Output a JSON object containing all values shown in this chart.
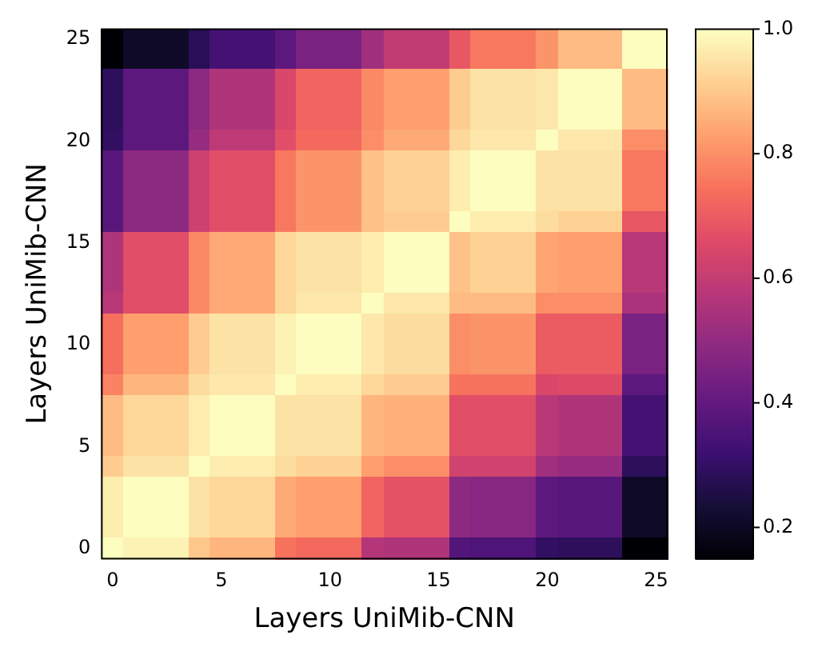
{
  "chart_data": {
    "type": "heatmap",
    "xlabel": "Layers UniMib-CNN",
    "ylabel": "Layers UniMib-CNN",
    "categories": [
      "0",
      null,
      null,
      null,
      null,
      "5",
      null,
      null,
      null,
      null,
      "10",
      null,
      null,
      null,
      null,
      "15",
      null,
      null,
      null,
      null,
      "20",
      null,
      null,
      null,
      null,
      "25"
    ],
    "y_categories": [
      "25",
      null,
      null,
      null,
      null,
      "20",
      null,
      null,
      null,
      null,
      "15",
      null,
      null,
      null,
      null,
      "10",
      null,
      null,
      null,
      null,
      "5",
      null,
      null,
      null,
      null,
      "0"
    ],
    "clim": [
      0.15,
      1.0
    ],
    "cticks": [
      0.2,
      0.4,
      0.6,
      0.8,
      {
        "value": 1,
        "label": "1.0"
      }
    ],
    "cells": [
      [
        0.15,
        0.21,
        0.21,
        0.21,
        0.28,
        0.34,
        0.34,
        0.34,
        0.39,
        0.45,
        0.45,
        0.45,
        0.53,
        0.6,
        0.6,
        0.6,
        0.69,
        0.76,
        0.76,
        0.76,
        0.81,
        0.88,
        0.88,
        0.88,
        1.0,
        1.0
      ],
      [
        0.15,
        0.21,
        0.21,
        0.21,
        0.28,
        0.34,
        0.34,
        0.34,
        0.39,
        0.45,
        0.45,
        0.45,
        0.53,
        0.6,
        0.6,
        0.6,
        0.69,
        0.76,
        0.76,
        0.76,
        0.81,
        0.88,
        0.88,
        0.88,
        1.0,
        1.0
      ],
      [
        0.29,
        0.39,
        0.39,
        0.39,
        0.49,
        0.56,
        0.56,
        0.56,
        0.65,
        0.72,
        0.72,
        0.72,
        0.79,
        0.83,
        0.83,
        0.83,
        0.91,
        0.95,
        0.95,
        0.95,
        0.96,
        1.0,
        1.0,
        1.0,
        0.88,
        0.88
      ],
      [
        0.29,
        0.39,
        0.39,
        0.39,
        0.49,
        0.56,
        0.56,
        0.56,
        0.65,
        0.72,
        0.72,
        0.72,
        0.79,
        0.83,
        0.83,
        0.83,
        0.91,
        0.95,
        0.95,
        0.95,
        0.96,
        1.0,
        1.0,
        1.0,
        0.88,
        0.88
      ],
      [
        0.29,
        0.39,
        0.39,
        0.39,
        0.49,
        0.56,
        0.56,
        0.56,
        0.65,
        0.72,
        0.72,
        0.72,
        0.79,
        0.83,
        0.83,
        0.83,
        0.91,
        0.95,
        0.95,
        0.95,
        0.96,
        1.0,
        1.0,
        1.0,
        0.88,
        0.88
      ],
      [
        0.3,
        0.39,
        0.39,
        0.39,
        0.51,
        0.59,
        0.59,
        0.59,
        0.67,
        0.73,
        0.73,
        0.73,
        0.8,
        0.85,
        0.85,
        0.85,
        0.93,
        0.96,
        0.96,
        0.96,
        1.0,
        0.96,
        0.96,
        0.96,
        0.8,
        0.8
      ],
      [
        0.38,
        0.49,
        0.49,
        0.49,
        0.62,
        0.67,
        0.67,
        0.67,
        0.76,
        0.81,
        0.81,
        0.81,
        0.89,
        0.92,
        0.92,
        0.92,
        0.97,
        1.0,
        1.0,
        1.0,
        0.95,
        0.95,
        0.95,
        0.95,
        0.76,
        0.76
      ],
      [
        0.38,
        0.49,
        0.49,
        0.49,
        0.62,
        0.67,
        0.67,
        0.67,
        0.76,
        0.81,
        0.81,
        0.81,
        0.89,
        0.92,
        0.92,
        0.92,
        0.97,
        1.0,
        1.0,
        1.0,
        0.95,
        0.95,
        0.95,
        0.95,
        0.76,
        0.76
      ],
      [
        0.38,
        0.49,
        0.49,
        0.49,
        0.62,
        0.67,
        0.67,
        0.67,
        0.76,
        0.81,
        0.81,
        0.81,
        0.89,
        0.92,
        0.92,
        0.92,
        0.97,
        1.0,
        1.0,
        1.0,
        0.95,
        0.95,
        0.95,
        0.95,
        0.76,
        0.76
      ],
      [
        0.38,
        0.49,
        0.49,
        0.49,
        0.62,
        0.67,
        0.67,
        0.67,
        0.76,
        0.81,
        0.81,
        0.81,
        0.89,
        0.91,
        0.91,
        0.91,
        1.0,
        0.97,
        0.97,
        0.97,
        0.94,
        0.92,
        0.92,
        0.92,
        0.69,
        0.69
      ],
      [
        0.56,
        0.67,
        0.67,
        0.67,
        0.79,
        0.85,
        0.85,
        0.85,
        0.93,
        0.95,
        0.95,
        0.95,
        0.97,
        1.0,
        1.0,
        1.0,
        0.89,
        0.92,
        0.92,
        0.92,
        0.84,
        0.83,
        0.83,
        0.83,
        0.58,
        0.58
      ],
      [
        0.56,
        0.67,
        0.67,
        0.67,
        0.79,
        0.85,
        0.85,
        0.85,
        0.93,
        0.95,
        0.95,
        0.95,
        0.97,
        1.0,
        1.0,
        1.0,
        0.89,
        0.92,
        0.92,
        0.92,
        0.84,
        0.83,
        0.83,
        0.83,
        0.58,
        0.58
      ],
      [
        0.56,
        0.67,
        0.67,
        0.67,
        0.79,
        0.85,
        0.85,
        0.85,
        0.93,
        0.95,
        0.95,
        0.95,
        0.97,
        1.0,
        1.0,
        1.0,
        0.89,
        0.92,
        0.92,
        0.92,
        0.84,
        0.83,
        0.83,
        0.83,
        0.58,
        0.58
      ],
      [
        0.58,
        0.67,
        0.67,
        0.67,
        0.79,
        0.85,
        0.85,
        0.85,
        0.93,
        0.96,
        0.96,
        0.96,
        1.0,
        0.96,
        0.96,
        0.96,
        0.88,
        0.88,
        0.88,
        0.88,
        0.8,
        0.8,
        0.8,
        0.8,
        0.55,
        0.55
      ],
      [
        0.74,
        0.83,
        0.83,
        0.83,
        0.91,
        0.95,
        0.95,
        0.95,
        0.98,
        1.0,
        1.0,
        1.0,
        0.96,
        0.94,
        0.94,
        0.94,
        0.8,
        0.81,
        0.81,
        0.81,
        0.7,
        0.7,
        0.7,
        0.7,
        0.45,
        0.45
      ],
      [
        0.74,
        0.83,
        0.83,
        0.83,
        0.91,
        0.95,
        0.95,
        0.95,
        0.98,
        1.0,
        1.0,
        1.0,
        0.96,
        0.94,
        0.94,
        0.94,
        0.8,
        0.81,
        0.81,
        0.81,
        0.7,
        0.7,
        0.7,
        0.7,
        0.45,
        0.45
      ],
      [
        0.74,
        0.83,
        0.83,
        0.83,
        0.91,
        0.95,
        0.95,
        0.95,
        0.98,
        1.0,
        1.0,
        1.0,
        0.96,
        0.94,
        0.94,
        0.94,
        0.8,
        0.81,
        0.81,
        0.81,
        0.7,
        0.7,
        0.7,
        0.7,
        0.45,
        0.45
      ],
      [
        0.78,
        0.87,
        0.87,
        0.87,
        0.94,
        0.96,
        0.96,
        0.96,
        1.0,
        0.97,
        0.97,
        0.97,
        0.93,
        0.91,
        0.91,
        0.91,
        0.75,
        0.75,
        0.75,
        0.75,
        0.65,
        0.66,
        0.66,
        0.66,
        0.39,
        0.39
      ],
      [
        0.88,
        0.93,
        0.93,
        0.93,
        0.97,
        1.0,
        1.0,
        1.0,
        0.95,
        0.95,
        0.95,
        0.95,
        0.87,
        0.86,
        0.86,
        0.86,
        0.67,
        0.67,
        0.67,
        0.67,
        0.58,
        0.56,
        0.56,
        0.56,
        0.34,
        0.34
      ],
      [
        0.88,
        0.93,
        0.93,
        0.93,
        0.97,
        1.0,
        1.0,
        1.0,
        0.95,
        0.95,
        0.95,
        0.95,
        0.87,
        0.86,
        0.86,
        0.86,
        0.67,
        0.67,
        0.67,
        0.67,
        0.58,
        0.56,
        0.56,
        0.56,
        0.34,
        0.34
      ],
      [
        0.88,
        0.93,
        0.93,
        0.93,
        0.97,
        1.0,
        1.0,
        1.0,
        0.95,
        0.95,
        0.95,
        0.95,
        0.87,
        0.86,
        0.86,
        0.86,
        0.67,
        0.67,
        0.67,
        0.67,
        0.58,
        0.56,
        0.56,
        0.56,
        0.34,
        0.34
      ],
      [
        0.91,
        0.95,
        0.95,
        0.95,
        1.0,
        0.97,
        0.97,
        0.97,
        0.94,
        0.92,
        0.92,
        0.92,
        0.83,
        0.8,
        0.8,
        0.8,
        0.63,
        0.63,
        0.63,
        0.63,
        0.53,
        0.51,
        0.51,
        0.51,
        0.29,
        0.29
      ],
      [
        0.97,
        1.0,
        1.0,
        1.0,
        0.95,
        0.93,
        0.93,
        0.93,
        0.85,
        0.83,
        0.83,
        0.83,
        0.72,
        0.68,
        0.68,
        0.68,
        0.49,
        0.48,
        0.48,
        0.48,
        0.39,
        0.38,
        0.38,
        0.38,
        0.21,
        0.21
      ],
      [
        0.97,
        1.0,
        1.0,
        1.0,
        0.95,
        0.93,
        0.93,
        0.93,
        0.85,
        0.83,
        0.83,
        0.83,
        0.72,
        0.68,
        0.68,
        0.68,
        0.49,
        0.48,
        0.48,
        0.48,
        0.39,
        0.38,
        0.38,
        0.38,
        0.21,
        0.21
      ],
      [
        0.97,
        1.0,
        1.0,
        1.0,
        0.95,
        0.93,
        0.93,
        0.93,
        0.85,
        0.83,
        0.83,
        0.83,
        0.72,
        0.68,
        0.68,
        0.68,
        0.49,
        0.48,
        0.48,
        0.48,
        0.39,
        0.38,
        0.38,
        0.38,
        0.21,
        0.21
      ],
      [
        1.0,
        0.98,
        0.98,
        0.98,
        0.9,
        0.87,
        0.87,
        0.87,
        0.75,
        0.73,
        0.73,
        0.73,
        0.57,
        0.56,
        0.56,
        0.56,
        0.37,
        0.36,
        0.36,
        0.36,
        0.3,
        0.29,
        0.29,
        0.29,
        0.15,
        0.15
      ]
    ]
  }
}
